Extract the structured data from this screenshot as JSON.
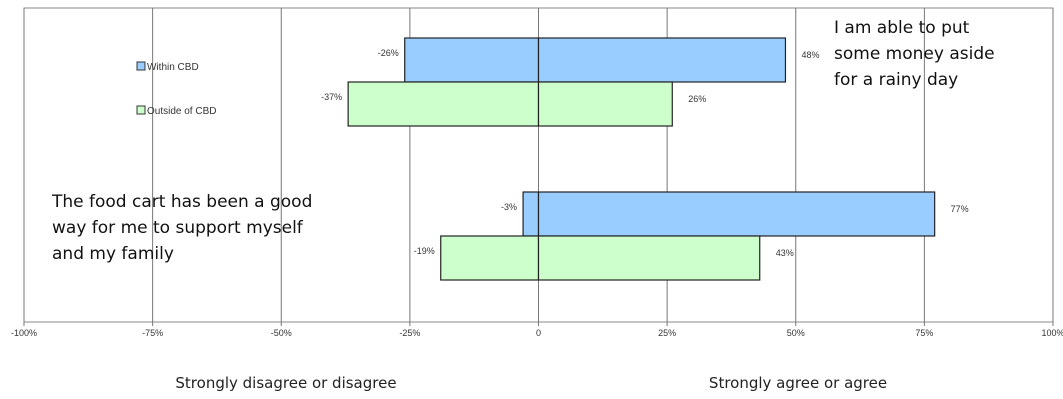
{
  "chart_data": {
    "type": "bar",
    "orientation": "horizontal-diverging",
    "xlim": [
      -100,
      100
    ],
    "x_ticks": [
      "-100%",
      "-75%",
      "-50%",
      "-25%",
      "0",
      "25%",
      "50%",
      "75%",
      "100%"
    ],
    "grid": "vertical",
    "legend_position": "upper-left inside plot",
    "series": [
      {
        "name": "Within CBD",
        "color": "#99ccff"
      },
      {
        "name": "Outside of CBD",
        "color": "#ccffcc"
      }
    ],
    "categories": [
      {
        "annotation": [
          "I am able to put",
          "some money aside",
          "for a rainy day"
        ],
        "values": [
          {
            "series": "Within CBD",
            "negative": -26,
            "positive": 48,
            "neg_label": "-26%",
            "pos_label": "48%"
          },
          {
            "series": "Outside of CBD",
            "negative": -37,
            "positive": 26,
            "neg_label": "-37%",
            "pos_label": "26%"
          }
        ]
      },
      {
        "annotation": [
          "The food cart has been a good",
          "way for me to support myself",
          "and my family"
        ],
        "values": [
          {
            "series": "Within CBD",
            "negative": -3,
            "positive": 77,
            "neg_label": "-3%",
            "pos_label": "77%"
          },
          {
            "series": "Outside of CBD",
            "negative": -19,
            "positive": 43,
            "neg_label": "-19%",
            "pos_label": "43%"
          }
        ]
      }
    ],
    "bottom_captions": {
      "left": "Strongly disagree or disagree",
      "right": "Strongly agree or agree"
    }
  }
}
